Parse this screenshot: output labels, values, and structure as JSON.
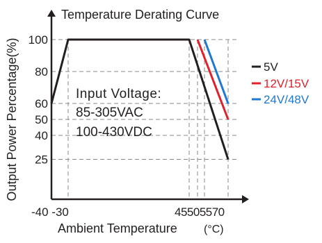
{
  "chart_data": {
    "type": "line",
    "title": "Temperature Derating Curve",
    "xlabel": "Ambient Temperature",
    "xlabel_unit": "(°C)",
    "ylabel": "Output Power Percentage(%)",
    "xlim": [
      -40,
      77
    ],
    "ylim": [
      0,
      107
    ],
    "x_ticks": [
      -40,
      -30,
      45,
      50,
      55,
      70
    ],
    "x_tick_labels": [
      "-40",
      "-30",
      "45",
      "50",
      "55",
      "70"
    ],
    "y_ticks": [
      25,
      40,
      50,
      60,
      80,
      100
    ],
    "y_tick_labels": [
      "25",
      "40",
      "50",
      "60",
      "80",
      "100"
    ],
    "x_tick_label_text": "-40 -30",
    "x_tick_label_text_right": "45505570",
    "grid": "dashed guide lines at tick values",
    "annotation": {
      "lines": [
        "Input Voltage:",
        "85-305VAC",
        "100-430VDC"
      ]
    },
    "legend_position": "right",
    "series": [
      {
        "name": "5V",
        "color": "#231f20",
        "x": [
          -40,
          -30,
          45,
          70
        ],
        "y": [
          60,
          100,
          100,
          25
        ]
      },
      {
        "name": "12V/15V",
        "color": "#e0202a",
        "x": [
          50,
          70
        ],
        "y": [
          100,
          50
        ]
      },
      {
        "name": "24V/48V",
        "color": "#1f78d1",
        "x": [
          55,
          70
        ],
        "y": [
          100,
          60
        ]
      }
    ]
  }
}
